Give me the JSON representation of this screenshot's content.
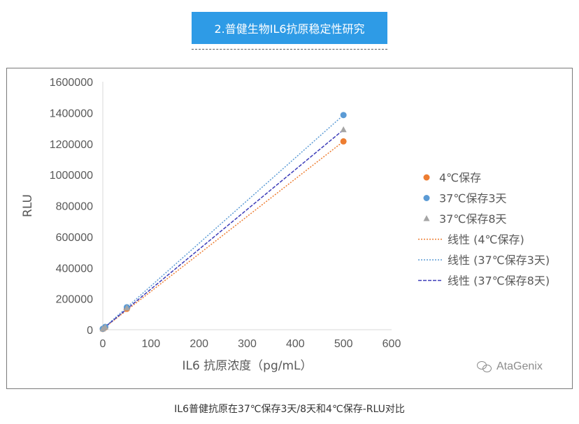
{
  "header": {
    "title": "2.普健生物IL6抗原稳定性研究"
  },
  "caption": "IL6普健抗原在37℃保存3天/8天和4℃保存-RLU对比",
  "watermark": {
    "text": "AtaGenix",
    "icon": "wechat-icon"
  },
  "chart_data": {
    "type": "scatter",
    "title": "",
    "xlabel": "IL6 抗原浓度（pg/mL）",
    "ylabel": "RLU",
    "xlim": [
      0,
      600
    ],
    "ylim": [
      0,
      1600000
    ],
    "xticks": [
      0,
      100,
      200,
      300,
      400,
      500,
      600
    ],
    "yticks": [
      0,
      200000,
      400000,
      600000,
      800000,
      1000000,
      1200000,
      1400000,
      1600000
    ],
    "grid": false,
    "legend_position": "right",
    "series": [
      {
        "name": "4℃保存",
        "marker": "circle",
        "color": "#ed7d31",
        "x": [
          0,
          5,
          50,
          500
        ],
        "y": [
          5000,
          15000,
          135000,
          1215000
        ]
      },
      {
        "name": "37℃保存3天",
        "marker": "circle",
        "color": "#5b9bd5",
        "x": [
          0,
          5,
          50,
          500
        ],
        "y": [
          6000,
          18000,
          145000,
          1385000
        ]
      },
      {
        "name": "37℃保存8天",
        "marker": "triangle",
        "color": "#a5a5a5",
        "x": [
          0,
          5,
          50,
          500
        ],
        "y": [
          5000,
          16000,
          140000,
          1290000
        ]
      }
    ],
    "trendlines": [
      {
        "name": "线性 (4℃保存)",
        "style": "dotted",
        "color": "#ed7d31",
        "x": [
          0,
          500
        ],
        "y": [
          5000,
          1215000
        ]
      },
      {
        "name": "线性 (37℃保存3天)",
        "style": "dotted",
        "color": "#5b9bd5",
        "x": [
          0,
          500
        ],
        "y": [
          6000,
          1385000
        ]
      },
      {
        "name": "线性 (37℃保存8天)",
        "style": "dashed",
        "color": "#3b3bb8",
        "x": [
          0,
          500
        ],
        "y": [
          5000,
          1290000
        ]
      }
    ]
  }
}
